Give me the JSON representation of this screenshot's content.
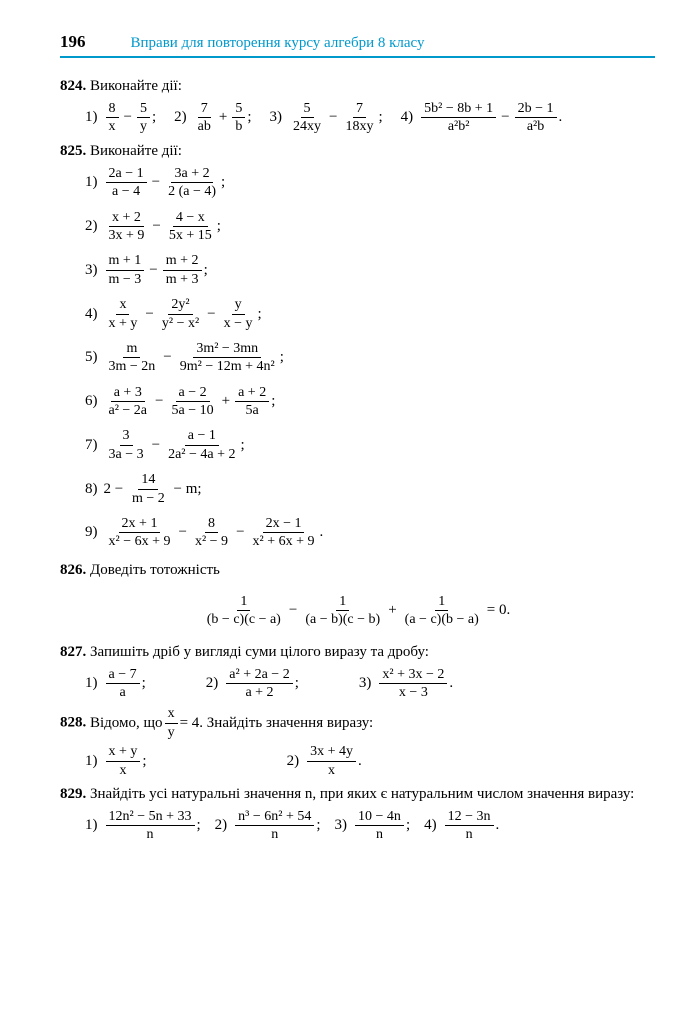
{
  "page_number": "196",
  "header_title": "Вправи для повторення курсу алгебри 8 класу",
  "colors": {
    "accent": "#0099cc",
    "text": "#000000",
    "bg": "#ffffff"
  },
  "p824": {
    "num": "824.",
    "title": "Виконайте дії:",
    "items": [
      {
        "label": "1)",
        "n1": "8",
        "d1": "x",
        "op1": "−",
        "n2": "5",
        "d2": "y",
        "end": ";"
      },
      {
        "label": "2)",
        "n1": "7",
        "d1": "ab",
        "op1": "+",
        "n2": "5",
        "d2": "b",
        "end": ";"
      },
      {
        "label": "3)",
        "n1": "5",
        "d1": "24xy",
        "op1": "−",
        "n2": "7",
        "d2": "18xy",
        "end": ";"
      },
      {
        "label": "4)",
        "n1": "5b² − 8b + 1",
        "d1": "a²b²",
        "op1": "−",
        "n2": "2b − 1",
        "d2": "a²b",
        "end": "."
      }
    ]
  },
  "p825": {
    "num": "825.",
    "title": "Виконайте дії:",
    "items": [
      {
        "label": "1)",
        "n1": "2a − 1",
        "d1": "a − 4",
        "op": "−",
        "n2": "3a + 2",
        "d2": "2 (a − 4)",
        "end": ";"
      },
      {
        "label": "2)",
        "n1": "x + 2",
        "d1": "3x + 9",
        "op": "−",
        "n2": "4 − x",
        "d2": "5x + 15",
        "end": ";"
      },
      {
        "label": "3)",
        "n1": "m + 1",
        "d1": "m − 3",
        "op": "−",
        "n2": "m + 2",
        "d2": "m + 3",
        "end": ";"
      },
      {
        "label": "4)",
        "n1": "x",
        "d1": "x + y",
        "op": "−",
        "n2": "2y²",
        "d2": "y² − x²",
        "op2": "−",
        "n3": "y",
        "d3": "x − y",
        "end": ";"
      },
      {
        "label": "5)",
        "n1": "m",
        "d1": "3m − 2n",
        "op": "−",
        "n2": "3m² − 3mn",
        "d2": "9m² − 12m + 4n²",
        "end": ";"
      },
      {
        "label": "6)",
        "n1": "a + 3",
        "d1": "a² − 2a",
        "op": "−",
        "n2": "a − 2",
        "d2": "5a − 10",
        "op2": "+",
        "n3": "a + 2",
        "d3": "5a",
        "end": ";"
      },
      {
        "label": "7)",
        "n1": "3",
        "d1": "3a − 3",
        "op": "−",
        "n2": "a − 1",
        "d2": "2a² − 4a + 2",
        "end": ";"
      },
      {
        "label": "8)",
        "pre": "2 −",
        "n1": "14",
        "d1": "m − 2",
        "post": "− m;",
        "simple": true
      },
      {
        "label": "9)",
        "n1": "2x + 1",
        "d1": "x² − 6x + 9",
        "op": "−",
        "n2": "8",
        "d2": "x² − 9",
        "op2": "−",
        "n3": "2x − 1",
        "d3": "x² + 6x + 9",
        "end": "."
      }
    ]
  },
  "p826": {
    "num": "826.",
    "title": "Доведіть тотожність",
    "eq": {
      "n1": "1",
      "d1": "(b − c)(c − a)",
      "op1": "−",
      "n2": "1",
      "d2": "(a − b)(c − b)",
      "op2": "+",
      "n3": "1",
      "d3": "(a − c)(b − a)",
      "rhs": "= 0."
    }
  },
  "p827": {
    "num": "827.",
    "title": "Запишіть дріб у вигляді суми цілого виразу та дробу:",
    "items": [
      {
        "label": "1)",
        "n": "a − 7",
        "d": "a",
        "end": ";"
      },
      {
        "label": "2)",
        "n": "a² + 2a − 2",
        "d": "a + 2",
        "end": ";"
      },
      {
        "label": "3)",
        "n": "x² + 3x − 2",
        "d": "x − 3",
        "end": "."
      }
    ]
  },
  "p828": {
    "num": "828.",
    "title_pre": "Відомо, що ",
    "frac_n": "x",
    "frac_d": "y",
    "title_post": " = 4. Знайдіть значення виразу:",
    "items": [
      {
        "label": "1)",
        "n": "x + y",
        "d": "x",
        "end": ";"
      },
      {
        "label": "2)",
        "n": "3x + 4y",
        "d": "x",
        "end": "."
      }
    ]
  },
  "p829": {
    "num": "829.",
    "title": "Знайдіть усі натуральні значення n, при яких є натуральним числом значення виразу:",
    "items": [
      {
        "label": "1)",
        "n": "12n² − 5n + 33",
        "d": "n",
        "end": ";"
      },
      {
        "label": "2)",
        "n": "n³ − 6n² + 54",
        "d": "n",
        "end": ";"
      },
      {
        "label": "3)",
        "n": "10 − 4n",
        "d": "n",
        "end": ";"
      },
      {
        "label": "4)",
        "n": "12 − 3n",
        "d": "n",
        "end": "."
      }
    ]
  }
}
